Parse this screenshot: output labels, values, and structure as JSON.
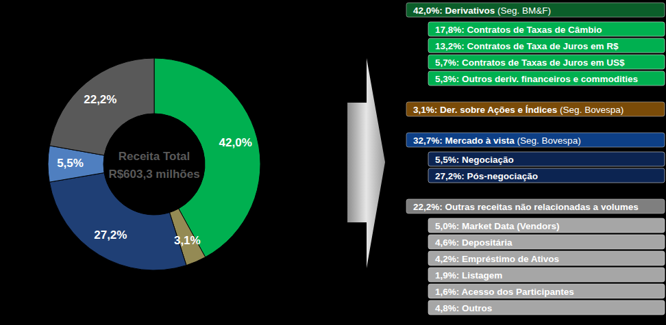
{
  "chart_data": {
    "type": "pie",
    "center_text": [
      "Receita Total",
      "R$603,3 milhões"
    ],
    "values": [
      42.0,
      3.1,
      27.2,
      5.5,
      22.2
    ],
    "value_labels": [
      "42,0%",
      "3,1%",
      "27,2%",
      "5,5%",
      "22,2%"
    ],
    "colors": [
      "#00b050",
      "#948a54",
      "#1f3f75",
      "#4f7fc0",
      "#595959"
    ],
    "data_labels": true,
    "breakdown": [
      {
        "label": "42,0%: Derivativos",
        "note": "(Seg. BM&F)",
        "color": "#0b5e2a",
        "item_color": "#00b050",
        "items": [
          "17,8%: Contratos de Taxas de Câmbio",
          "13,2%: Contratos de Taxa de Juros em R$",
          "5,7%: Contratos de Taxas de Juros em US$",
          "5,3%: Outros deriv. financeiros e commodities"
        ]
      },
      {
        "label": "3,1%: Der. sobre Ações e Índices",
        "note": "(Seg. Bovespa)",
        "color": "#7a4b08",
        "item_color": "#7a4b08",
        "items": []
      },
      {
        "label": "32,7%: Mercado à vista",
        "note": "(Seg. Bovespa)",
        "color": "#0d3f86",
        "item_color": "#0c2451",
        "items": [
          "5,5%: Negociação",
          "27,2%: Pós-negociação"
        ]
      },
      {
        "label": "22,2%: Outras receitas não relacionadas a volumes",
        "color": "#7f7f7f",
        "item_color": "#a6a6a6",
        "items": [
          "5,0%: Market Data (Vendors)",
          "4,6%: Depositária",
          "4,2%: Empréstimo de Ativos",
          "1,9%: Listagem",
          "1,6%: Acesso dos Participantes",
          "4,8%: Outros"
        ]
      }
    ]
  }
}
